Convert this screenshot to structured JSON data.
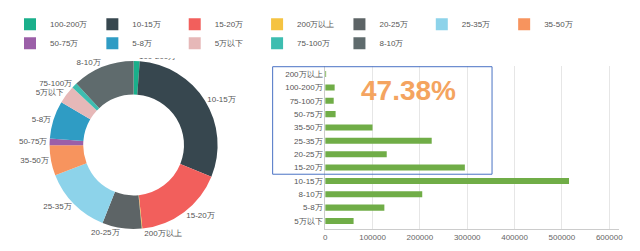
{
  "chart_data": [
    {
      "type": "pie",
      "categories": [
        "100-200万",
        "10-15万",
        "15-20万",
        "200万以上",
        "20-25万",
        "25-35万",
        "35-50万",
        "50-75万",
        "5-8万",
        "5万以下",
        "75-100万",
        "8-10万"
      ],
      "values": [
        20000,
        515000,
        295000,
        2000,
        130000,
        225000,
        100000,
        22000,
        125000,
        60000,
        18000,
        205000
      ],
      "colors": [
        "#1aaf8b",
        "#37474f",
        "#f25f5c",
        "#f5c342",
        "#5d6466",
        "#8dd3ea",
        "#f7945e",
        "#9b5fa8",
        "#2f9cc4",
        "#e6b8b8",
        "#3dbdb0",
        "#5f6b6d"
      ],
      "legend": "top"
    },
    {
      "type": "bar",
      "orientation": "horizontal",
      "categories": [
        "5万以下",
        "5-8万",
        "8-10万",
        "10-15万",
        "15-20万",
        "20-25万",
        "25-35万",
        "35-50万",
        "50-75万",
        "75-100万",
        "100-200万",
        "200万以上"
      ],
      "values": [
        60000,
        125000,
        205000,
        515000,
        295000,
        130000,
        225000,
        100000,
        22000,
        18000,
        20000,
        2000
      ],
      "color": "#70ad47",
      "xlim": [
        0,
        620000
      ],
      "xticks": [
        0,
        100000,
        200000,
        300000,
        400000,
        500000,
        600000
      ],
      "grid": true,
      "annotations": [
        "47.38%"
      ]
    }
  ]
}
